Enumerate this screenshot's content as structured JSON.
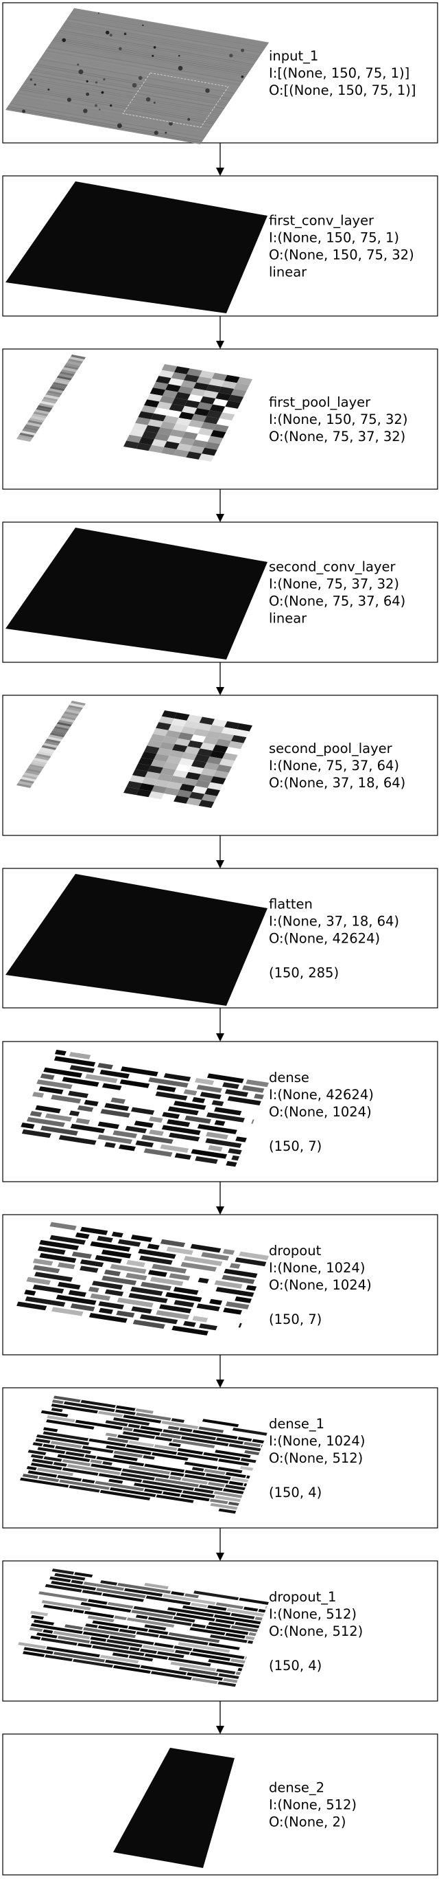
{
  "diagram": {
    "layers": [
      {
        "name": "input_1",
        "lines": [
          "I:[(None, 150, 75, 1)]",
          "O:[(None, 150, 75, 1)]"
        ],
        "extra": "",
        "visual": "input-image"
      },
      {
        "name": "first_conv_layer",
        "lines": [
          "I:(None, 150, 75, 1)",
          "O:(None, 150, 75, 32)",
          "linear"
        ],
        "extra": "",
        "visual": "solid-plate"
      },
      {
        "name": "first_pool_layer",
        "lines": [
          "I:(None, 150, 75, 32)",
          "O:(None, 75, 37, 32)"
        ],
        "extra": "",
        "visual": "pooled-strips"
      },
      {
        "name": "second_conv_layer",
        "lines": [
          "I:(None, 75, 37, 32)",
          "O:(None, 75, 37, 64)",
          "linear"
        ],
        "extra": "",
        "visual": "solid-plate"
      },
      {
        "name": "second_pool_layer",
        "lines": [
          "I:(None, 75, 37, 64)",
          "O:(None, 37, 18, 64)"
        ],
        "extra": "",
        "visual": "pooled-strips"
      },
      {
        "name": "flatten",
        "lines": [
          "I:(None, 37, 18, 64)",
          "O:(None, 42624)"
        ],
        "extra": "(150, 285)",
        "visual": "solid-plate"
      },
      {
        "name": "dense",
        "lines": [
          "I:(None, 42624)",
          "O:(None, 1024)"
        ],
        "extra": "(150, 7)",
        "visual": "bars"
      },
      {
        "name": "dropout",
        "lines": [
          "I:(None, 1024)",
          "O:(None, 1024)"
        ],
        "extra": "(150, 7)",
        "visual": "bars"
      },
      {
        "name": "dense_1",
        "lines": [
          "I:(None, 1024)",
          "O:(None, 512)"
        ],
        "extra": "(150, 4)",
        "visual": "bars-dense"
      },
      {
        "name": "dropout_1",
        "lines": [
          "I:(None, 512)",
          "O:(None, 512)"
        ],
        "extra": "(150, 4)",
        "visual": "bars-dense"
      },
      {
        "name": "dense_2",
        "lines": [
          "I:(None, 512)",
          "O:(None, 2)"
        ],
        "extra": "",
        "visual": "small-plate"
      }
    ],
    "colors": {
      "frame": "#000000",
      "plate": "#0a0a0a",
      "background": "#ffffff"
    }
  }
}
